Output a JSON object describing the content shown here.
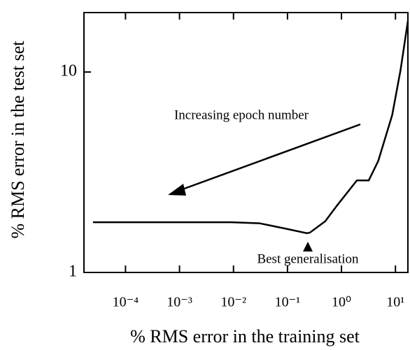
{
  "chart_data": {
    "type": "line",
    "x_label": "% RMS error in the training set",
    "y_label": "% RMS error in the test set",
    "x_scale": "log",
    "y_scale": "log",
    "xlim": [
      1.7e-05,
      17
    ],
    "ylim": [
      1,
      19.8
    ],
    "xticks": [
      {
        "value": 0.0001,
        "label": "10⁻⁴"
      },
      {
        "value": 0.001,
        "label": "10⁻³"
      },
      {
        "value": 0.01,
        "label": "10⁻²"
      },
      {
        "value": 0.1,
        "label": "10⁻¹"
      },
      {
        "value": 1,
        "label": "10⁰"
      },
      {
        "value": 10,
        "label": "10¹"
      }
    ],
    "yticks": [
      1,
      10
    ],
    "color": "#000000",
    "x": [
      2.5e-05,
      0.0001,
      0.001,
      0.009,
      0.03,
      0.087,
      0.23,
      0.26,
      0.5,
      0.83,
      1.93,
      3.2,
      4.8,
      8.7,
      12.4,
      17
    ],
    "values": [
      1.78,
      1.78,
      1.78,
      1.78,
      1.76,
      1.66,
      1.57,
      1.58,
      1.8,
      2.16,
      2.88,
      2.88,
      3.6,
      6.1,
      10.2,
      18
    ],
    "annotations": [
      "Increasing epoch number",
      "Best generalisation"
    ]
  }
}
